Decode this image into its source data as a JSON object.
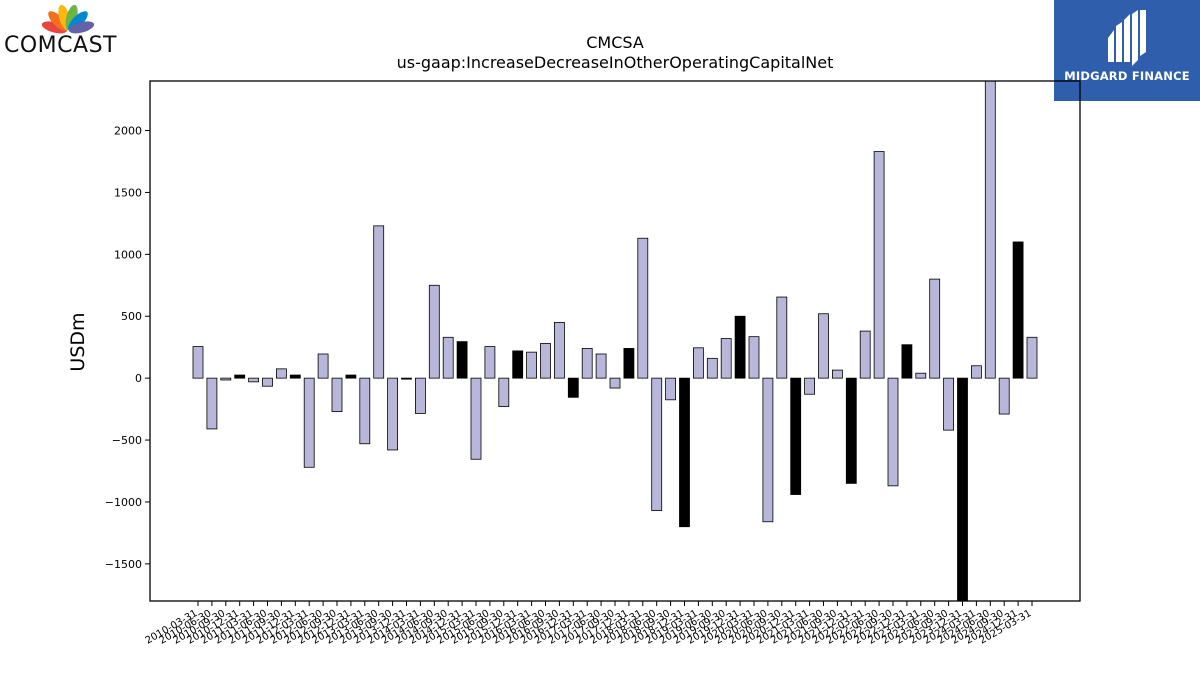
{
  "branding": {
    "left_logo_text": "COMCAST",
    "right_logo_text": "MIDGARD FINANCE",
    "right_logo_bg": "#2f5ead",
    "peacock_colors": [
      "#e8463c",
      "#f37021",
      "#fcb711",
      "#6bb544",
      "#0089d0",
      "#6460aa"
    ]
  },
  "chart_data": {
    "type": "bar",
    "title": "CMCSA",
    "subtitle": "us-gaap:IncreaseDecreaseInOtherOperatingCapitalNet",
    "xlabel": "",
    "ylabel": "USDm",
    "ylim": [
      -1800,
      2400
    ],
    "yticks": [
      -1500,
      -1000,
      -500,
      0,
      500,
      1000,
      1500,
      2000
    ],
    "grid": false,
    "colors": {
      "regular": "#b9b7d9",
      "q4": "#000000",
      "edge": "#000000"
    },
    "categories": [
      "2010-03-31",
      "2010-06-30",
      "2010-09-30",
      "2010-12-31",
      "2011-03-31",
      "2011-06-30",
      "2011-09-30",
      "2011-12-31",
      "2012-03-31",
      "2012-06-30",
      "2012-09-30",
      "2012-12-31",
      "2013-03-31",
      "2013-06-30",
      "2013-09-30",
      "2013-12-31",
      "2014-03-31",
      "2014-06-30",
      "2014-09-30",
      "2014-12-31",
      "2015-03-31",
      "2015-06-30",
      "2015-09-30",
      "2015-12-31",
      "2016-03-31",
      "2016-06-30",
      "2016-09-30",
      "2016-12-31",
      "2017-03-31",
      "2017-06-30",
      "2017-09-30",
      "2017-12-31",
      "2018-03-31",
      "2018-06-30",
      "2018-09-30",
      "2018-12-31",
      "2019-03-31",
      "2019-06-30",
      "2019-09-30",
      "2019-12-31",
      "2020-03-31",
      "2020-06-30",
      "2020-09-30",
      "2020-12-31",
      "2021-03-31",
      "2021-06-30",
      "2021-09-30",
      "2021-12-31",
      "2022-03-31",
      "2022-06-30",
      "2022-09-30",
      "2022-12-31",
      "2023-03-31",
      "2023-06-30",
      "2023-09-30",
      "2023-12-31",
      "2024-03-31",
      "2024-06-30",
      "2024-09-30",
      "2024-12-31",
      "2025-03-31"
    ],
    "values": [
      255,
      -410,
      -15,
      25,
      -30,
      -65,
      75,
      25,
      -720,
      195,
      -270,
      25,
      -530,
      1230,
      -580,
      0,
      -285,
      750,
      330,
      295,
      -655,
      255,
      -230,
      220,
      210,
      280,
      450,
      -155,
      240,
      195,
      -80,
      240,
      1130,
      -1070,
      -175,
      -1200,
      245,
      160,
      320,
      500,
      335,
      -1160,
      655,
      -940,
      -130,
      520,
      65,
      -850,
      380,
      1830,
      -870,
      270,
      40,
      800,
      -420,
      -1800,
      100,
      2400,
      -290,
      1100,
      330
    ]
  }
}
